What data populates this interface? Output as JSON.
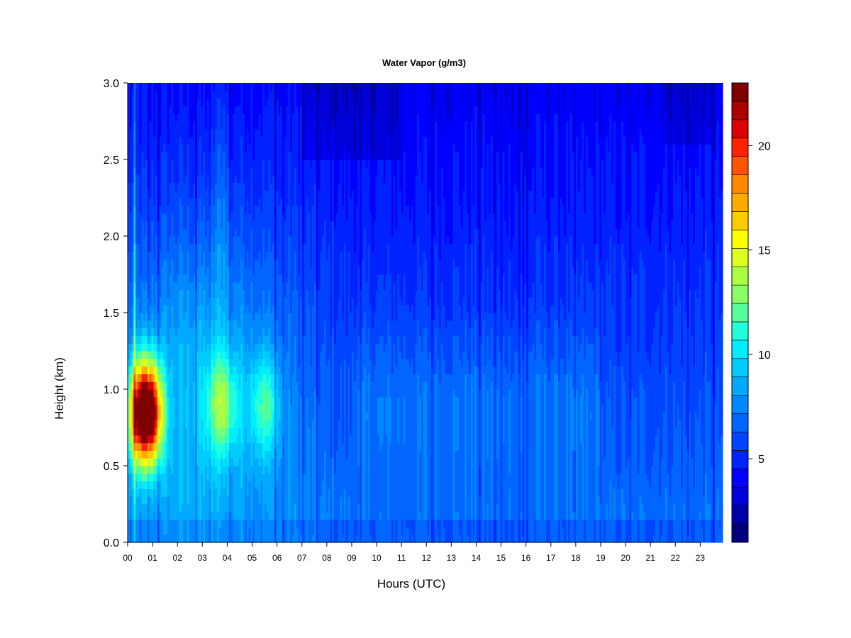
{
  "chart_data": {
    "type": "heatmap",
    "title": "Water Vapor (g/m3)",
    "xlabel": "Hours (UTC)",
    "ylabel": "Height (km)",
    "xlim": [
      0,
      23.9
    ],
    "ylim": [
      0.0,
      3.0
    ],
    "x_ticks": [
      "00",
      "01",
      "02",
      "03",
      "04",
      "05",
      "06",
      "07",
      "08",
      "09",
      "10",
      "11",
      "12",
      "13",
      "14",
      "15",
      "16",
      "17",
      "18",
      "19",
      "20",
      "21",
      "22",
      "23"
    ],
    "y_ticks": [
      "0.0",
      "0.5",
      "1.0",
      "1.5",
      "2.0",
      "2.5",
      "3.0"
    ],
    "colorbar": {
      "min": 1.0,
      "max": 23.0,
      "step": 1.0,
      "ticks": [
        "5",
        "10",
        "15",
        "20"
      ],
      "tick_values": [
        5,
        10,
        15,
        20
      ],
      "colors": [
        "#00007f",
        "#0000a8",
        "#0000d8",
        "#0000ff",
        "#0022ff",
        "#0044ff",
        "#0066ff",
        "#0088ff",
        "#00aaff",
        "#00ccff",
        "#00eeff",
        "#22ffdd",
        "#55ff99",
        "#88ff66",
        "#aaff44",
        "#ddff22",
        "#ffff00",
        "#ffcc00",
        "#ffaa00",
        "#ff8800",
        "#ff5500",
        "#ff2200",
        "#dd0000",
        "#aa0000",
        "#7f0000"
      ]
    },
    "features": [
      {
        "hour": 0.5,
        "height_km": 0.85,
        "peak_value": 22
      },
      {
        "hour": 1.0,
        "height_km": 0.85,
        "peak_value": 20
      },
      {
        "hour": 3.8,
        "height_km": 0.9,
        "peak_value": 13
      },
      {
        "hour": 5.5,
        "height_km": 0.9,
        "peak_value": 12
      }
    ]
  }
}
